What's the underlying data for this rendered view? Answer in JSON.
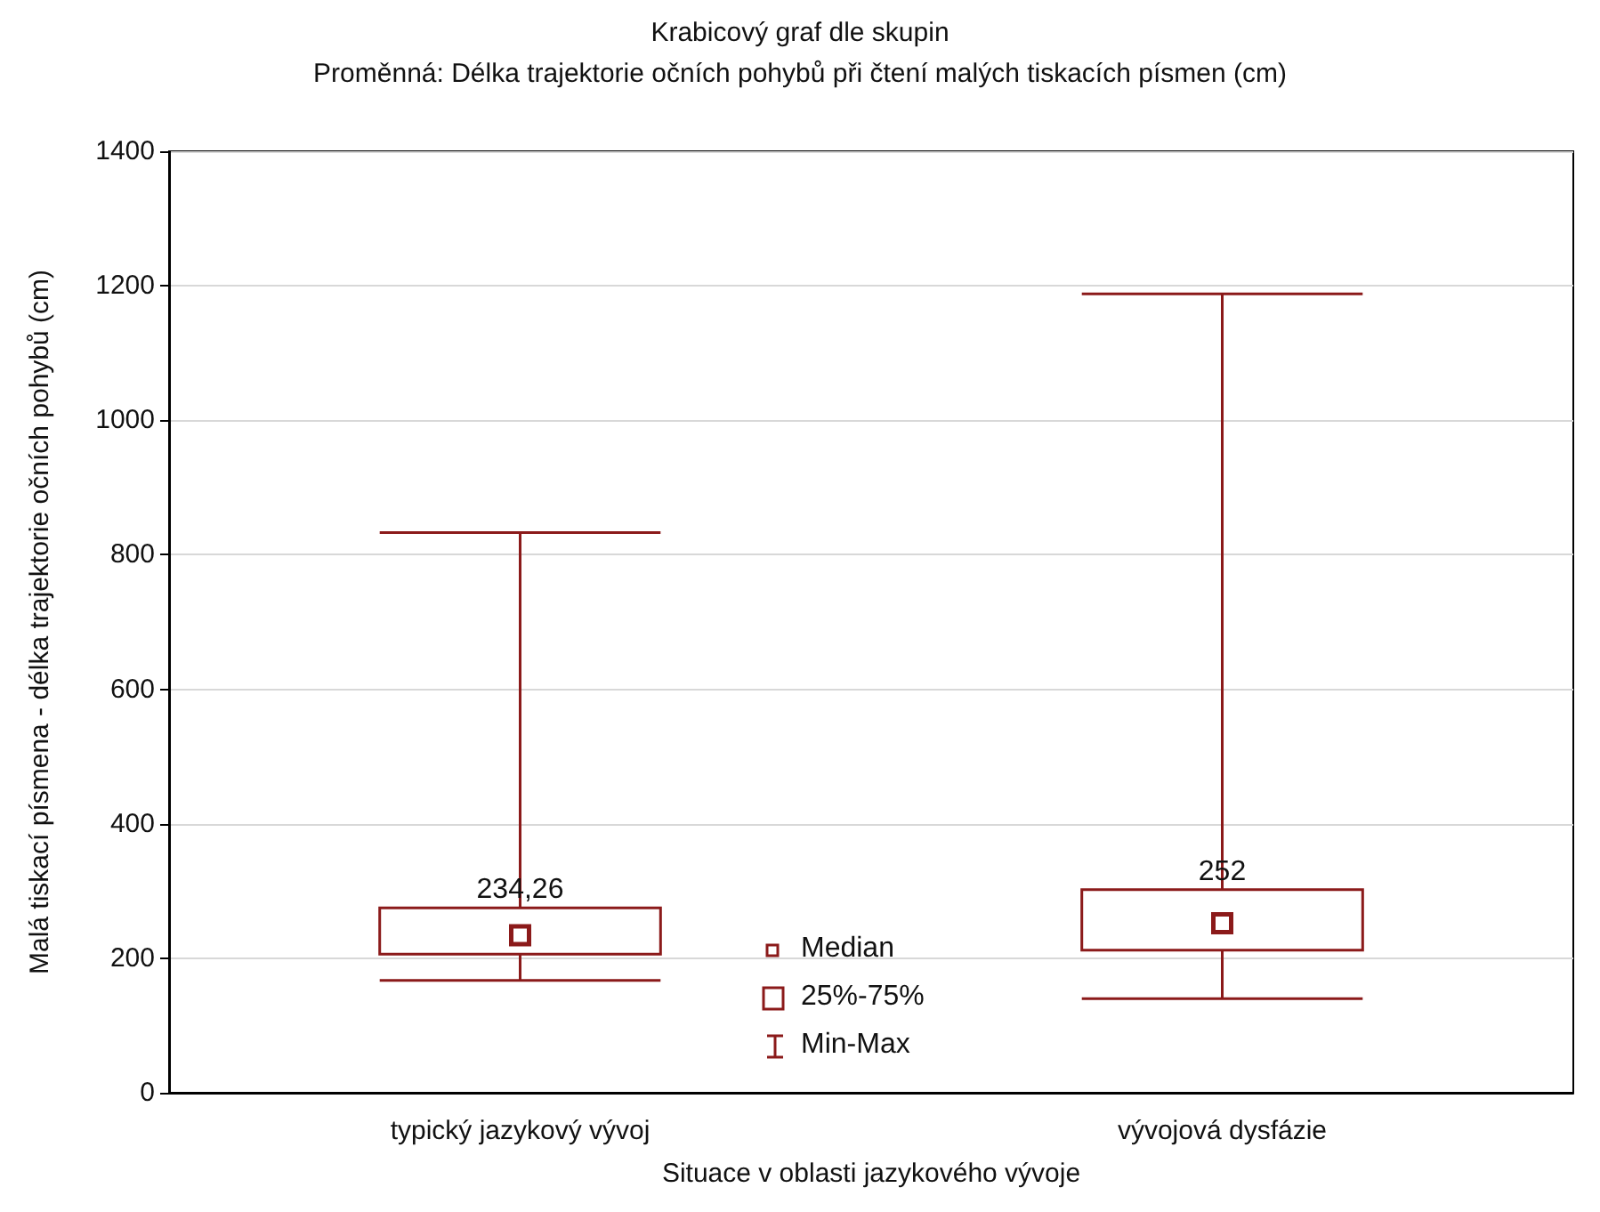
{
  "chart_data": {
    "type": "box",
    "title": "Krabicový graf dle skupin",
    "subtitle": "Proměnná: Délka trajektorie očních pohybů při čtení malých tiskacích písmen (cm)",
    "xlabel": "Situace v oblasti jazykového vývoje",
    "ylabel": "Malá tiskací písmena - délka trajektorie očních pohybů (cm)",
    "categories": [
      "typický jazykový vývoj",
      "vývojová dysfázie"
    ],
    "boxes": [
      {
        "low": 167,
        "q1": 206,
        "median": 234.26,
        "q3": 275,
        "high": 833
      },
      {
        "low": 140,
        "q1": 212,
        "median": 252,
        "q3": 302,
        "high": 1188
      }
    ],
    "value_labels": [
      "234,26",
      "252"
    ],
    "color": "#8b1a1a",
    "marker": "square",
    "ylim": [
      0,
      1400
    ],
    "yticks": [
      0,
      200,
      400,
      600,
      800,
      1000,
      1200,
      1400
    ],
    "grid": "y",
    "annotations": [
      "Median",
      "25%-75%",
      "Min-Max"
    ]
  }
}
